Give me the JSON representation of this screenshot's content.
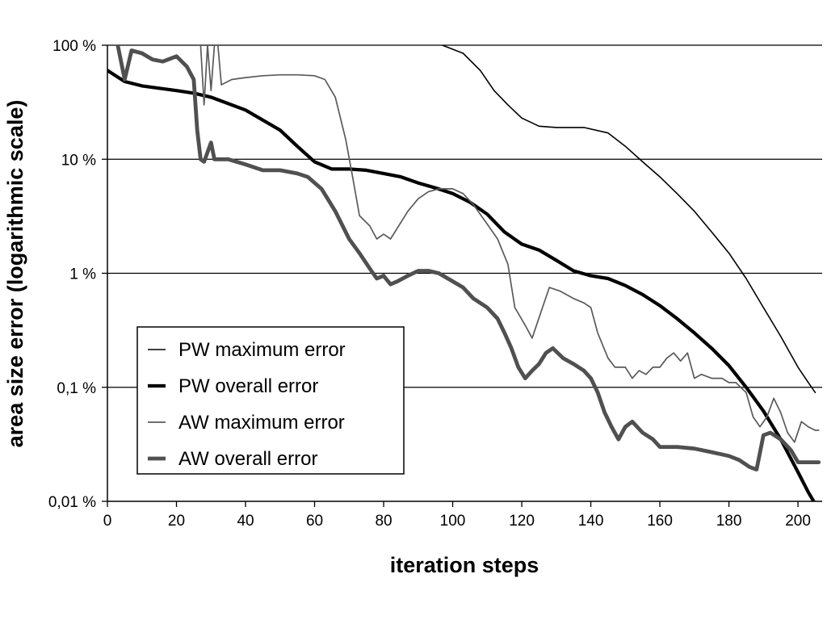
{
  "chart_data": {
    "type": "line",
    "title": "",
    "xlabel": "iteration steps",
    "ylabel": "area size error (logarithmic scale)",
    "x_scale": "linear",
    "y_scale": "log",
    "xlim": [
      0,
      207
    ],
    "ylim": [
      0.01,
      100
    ],
    "grid": "horizontal",
    "legend_position": "bottom-left",
    "x_ticks": [
      {
        "value": 0,
        "label": "0"
      },
      {
        "value": 20,
        "label": "20"
      },
      {
        "value": 40,
        "label": "40"
      },
      {
        "value": 60,
        "label": "60"
      },
      {
        "value": 80,
        "label": "80"
      },
      {
        "value": 100,
        "label": "100"
      },
      {
        "value": 120,
        "label": "120"
      },
      {
        "value": 140,
        "label": "140"
      },
      {
        "value": 160,
        "label": "160"
      },
      {
        "value": 180,
        "label": "180"
      },
      {
        "value": 200,
        "label": "200"
      }
    ],
    "y_ticks": [
      {
        "value": 100,
        "label": "100 %"
      },
      {
        "value": 10,
        "label": "10 %"
      },
      {
        "value": 1,
        "label": "1 %"
      },
      {
        "value": 0.1,
        "label": "0,1 %"
      },
      {
        "value": 0.01,
        "label": "0,01 %"
      }
    ],
    "series": [
      {
        "name": "PW maximum error",
        "color": "#000000",
        "points": [
          [
            97,
            100
          ],
          [
            103,
            85
          ],
          [
            108,
            60
          ],
          [
            112,
            40
          ],
          [
            116,
            30
          ],
          [
            120,
            23
          ],
          [
            125,
            19.5
          ],
          [
            130,
            19
          ],
          [
            138,
            19
          ],
          [
            145,
            17
          ],
          [
            150,
            13
          ],
          [
            155,
            9.5
          ],
          [
            160,
            7
          ],
          [
            165,
            5
          ],
          [
            170,
            3.5
          ],
          [
            175,
            2.3
          ],
          [
            180,
            1.5
          ],
          [
            185,
            0.9
          ],
          [
            190,
            0.5
          ],
          [
            195,
            0.28
          ],
          [
            200,
            0.15
          ],
          [
            203,
            0.11
          ],
          [
            205,
            0.09
          ]
        ]
      },
      {
        "name": "PW overall error",
        "color": "#000000",
        "points": [
          [
            0,
            60
          ],
          [
            5,
            48
          ],
          [
            10,
            44
          ],
          [
            20,
            40
          ],
          [
            25,
            38
          ],
          [
            30,
            35
          ],
          [
            40,
            27
          ],
          [
            50,
            18
          ],
          [
            55,
            13
          ],
          [
            60,
            9.5
          ],
          [
            65,
            8.2
          ],
          [
            70,
            8.2
          ],
          [
            75,
            8.0
          ],
          [
            80,
            7.5
          ],
          [
            85,
            7.0
          ],
          [
            90,
            6.2
          ],
          [
            95,
            5.6
          ],
          [
            100,
            5.0
          ],
          [
            105,
            4.2
          ],
          [
            110,
            3.3
          ],
          [
            115,
            2.3
          ],
          [
            120,
            1.8
          ],
          [
            125,
            1.6
          ],
          [
            130,
            1.3
          ],
          [
            135,
            1.05
          ],
          [
            140,
            0.95
          ],
          [
            145,
            0.9
          ],
          [
            150,
            0.78
          ],
          [
            155,
            0.65
          ],
          [
            160,
            0.52
          ],
          [
            165,
            0.4
          ],
          [
            170,
            0.3
          ],
          [
            175,
            0.22
          ],
          [
            180,
            0.155
          ],
          [
            185,
            0.1
          ],
          [
            190,
            0.062
          ],
          [
            195,
            0.035
          ],
          [
            200,
            0.018
          ],
          [
            203,
            0.012
          ],
          [
            205,
            0.0095
          ]
        ]
      },
      {
        "name": "AW maximum error",
        "color": "#5a5a5a",
        "points": [
          [
            27,
            100
          ],
          [
            28,
            30
          ],
          [
            29,
            100
          ],
          [
            30,
            40
          ],
          [
            31,
            100
          ],
          [
            32,
            100
          ],
          [
            33,
            45
          ],
          [
            36,
            50
          ],
          [
            40,
            52
          ],
          [
            45,
            54
          ],
          [
            50,
            55
          ],
          [
            55,
            55
          ],
          [
            60,
            54
          ],
          [
            63,
            50
          ],
          [
            66,
            35
          ],
          [
            69,
            15
          ],
          [
            71,
            7
          ],
          [
            73,
            3.2
          ],
          [
            76,
            2.6
          ],
          [
            78,
            2.0
          ],
          [
            80,
            2.2
          ],
          [
            82,
            2.0
          ],
          [
            84,
            2.5
          ],
          [
            87,
            3.5
          ],
          [
            90,
            4.5
          ],
          [
            93,
            5.2
          ],
          [
            96,
            5.5
          ],
          [
            100,
            5.5
          ],
          [
            103,
            5.0
          ],
          [
            106,
            4.0
          ],
          [
            110,
            2.7
          ],
          [
            113,
            2.0
          ],
          [
            116,
            1.2
          ],
          [
            118,
            0.5
          ],
          [
            121,
            0.35
          ],
          [
            123,
            0.27
          ],
          [
            126,
            0.5
          ],
          [
            128,
            0.75
          ],
          [
            131,
            0.7
          ],
          [
            135,
            0.6
          ],
          [
            138,
            0.55
          ],
          [
            140,
            0.5
          ],
          [
            142,
            0.3
          ],
          [
            145,
            0.18
          ],
          [
            147,
            0.15
          ],
          [
            150,
            0.15
          ],
          [
            152,
            0.12
          ],
          [
            154,
            0.14
          ],
          [
            156,
            0.13
          ],
          [
            158,
            0.15
          ],
          [
            160,
            0.15
          ],
          [
            162,
            0.18
          ],
          [
            164,
            0.2
          ],
          [
            166,
            0.17
          ],
          [
            168,
            0.2
          ],
          [
            170,
            0.12
          ],
          [
            172,
            0.13
          ],
          [
            175,
            0.12
          ],
          [
            178,
            0.12
          ],
          [
            180,
            0.11
          ],
          [
            182,
            0.11
          ],
          [
            185,
            0.09
          ],
          [
            187,
            0.055
          ],
          [
            189,
            0.045
          ],
          [
            191,
            0.055
          ],
          [
            193,
            0.08
          ],
          [
            195,
            0.06
          ],
          [
            197,
            0.04
          ],
          [
            199,
            0.033
          ],
          [
            201,
            0.05
          ],
          [
            203,
            0.045
          ],
          [
            205,
            0.042
          ],
          [
            206,
            0.042
          ]
        ]
      },
      {
        "name": "AW overall error",
        "color": "#505050",
        "points": [
          [
            3,
            100
          ],
          [
            5,
            50
          ],
          [
            7,
            90
          ],
          [
            10,
            85
          ],
          [
            13,
            75
          ],
          [
            16,
            72
          ],
          [
            20,
            80
          ],
          [
            23,
            65
          ],
          [
            25,
            50
          ],
          [
            26,
            18
          ],
          [
            27,
            10
          ],
          [
            28,
            9.5
          ],
          [
            30,
            14
          ],
          [
            31,
            10
          ],
          [
            35,
            10
          ],
          [
            40,
            9
          ],
          [
            45,
            8
          ],
          [
            50,
            8
          ],
          [
            55,
            7.5
          ],
          [
            58,
            7.0
          ],
          [
            62,
            5.5
          ],
          [
            66,
            3.5
          ],
          [
            70,
            2.0
          ],
          [
            73,
            1.5
          ],
          [
            76,
            1.1
          ],
          [
            78,
            0.9
          ],
          [
            80,
            0.95
          ],
          [
            82,
            0.8
          ],
          [
            84,
            0.85
          ],
          [
            87,
            0.95
          ],
          [
            90,
            1.05
          ],
          [
            93,
            1.05
          ],
          [
            96,
            1.0
          ],
          [
            100,
            0.85
          ],
          [
            103,
            0.75
          ],
          [
            106,
            0.6
          ],
          [
            110,
            0.5
          ],
          [
            113,
            0.4
          ],
          [
            115,
            0.3
          ],
          [
            117,
            0.22
          ],
          [
            119,
            0.15
          ],
          [
            121,
            0.12
          ],
          [
            123,
            0.14
          ],
          [
            125,
            0.16
          ],
          [
            127,
            0.2
          ],
          [
            129,
            0.22
          ],
          [
            132,
            0.18
          ],
          [
            135,
            0.16
          ],
          [
            138,
            0.14
          ],
          [
            140,
            0.12
          ],
          [
            142,
            0.09
          ],
          [
            144,
            0.06
          ],
          [
            146,
            0.045
          ],
          [
            148,
            0.035
          ],
          [
            150,
            0.045
          ],
          [
            152,
            0.05
          ],
          [
            155,
            0.04
          ],
          [
            158,
            0.035
          ],
          [
            160,
            0.03
          ],
          [
            165,
            0.03
          ],
          [
            170,
            0.029
          ],
          [
            175,
            0.027
          ],
          [
            180,
            0.025
          ],
          [
            183,
            0.023
          ],
          [
            186,
            0.02
          ],
          [
            188,
            0.019
          ],
          [
            190,
            0.038
          ],
          [
            192,
            0.04
          ],
          [
            195,
            0.035
          ],
          [
            198,
            0.028
          ],
          [
            200,
            0.022
          ],
          [
            203,
            0.022
          ],
          [
            206,
            0.022
          ]
        ]
      }
    ]
  }
}
